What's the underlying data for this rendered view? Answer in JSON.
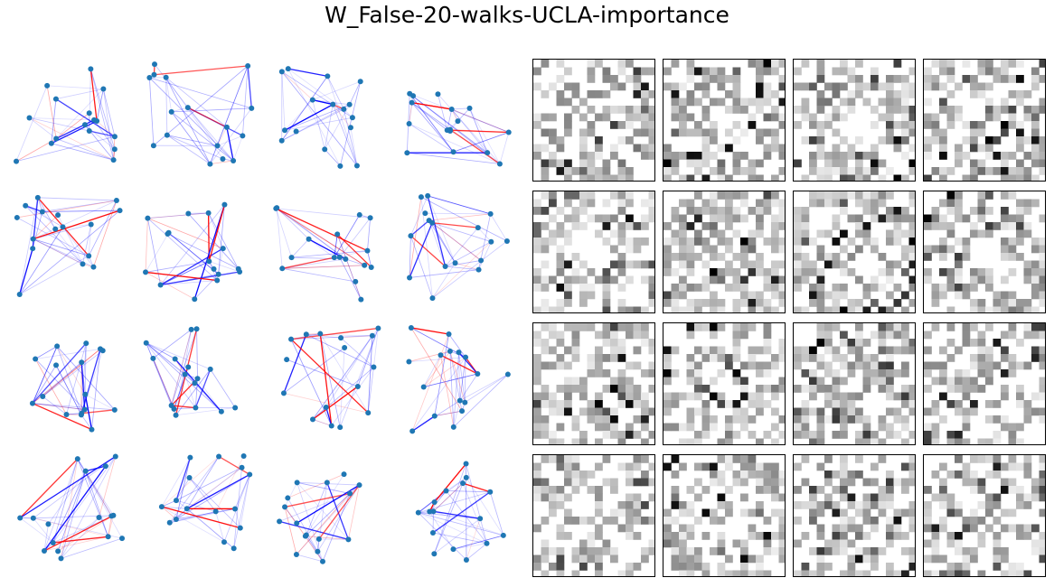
{
  "title": "W_False-20-walks-UCLA-importance",
  "chart_data": [
    {
      "type": "network-grid",
      "rows": 4,
      "cols": 4,
      "nodes_per_graph": 16,
      "node_color": "#1f77b4",
      "edge_colors": {
        "positive": "#0000ff",
        "negative": "#ff0000"
      }
    },
    {
      "type": "heatmap",
      "rows": 4,
      "cols": 4,
      "matrix_size": 16,
      "colormap": "Greys",
      "value_range": [
        0,
        1
      ],
      "axes_ticks": "off"
    }
  ]
}
